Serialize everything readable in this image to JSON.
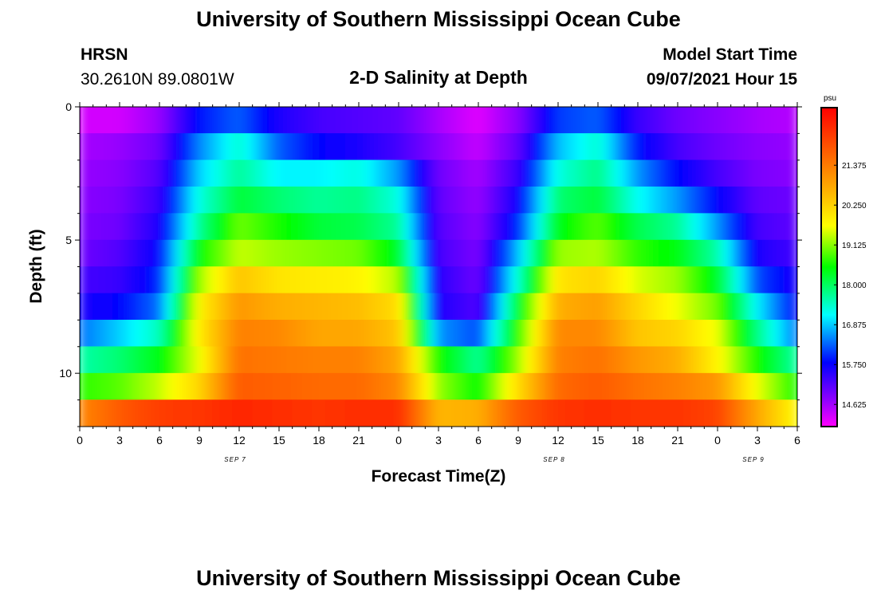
{
  "header": {
    "title": "University of Southern Mississippi Ocean Cube",
    "station": "HRSN",
    "coordinates": "30.2610N  89.0801W",
    "plot_title": "2-D Salinity at Depth",
    "model_start_label": "Model Start Time",
    "model_start_value": "09/07/2021 Hour 15"
  },
  "footer": {
    "title": "University of Southern Mississippi Ocean Cube"
  },
  "chart_data": {
    "type": "heatmap",
    "title": "2-D Salinity at Depth",
    "xlabel": "Forecast Time(Z)",
    "ylabel": "Depth (ft)",
    "x_hours_range": [
      0,
      54
    ],
    "x_ticks": [
      {
        "hour": 0,
        "label": "0"
      },
      {
        "hour": 3,
        "label": "3"
      },
      {
        "hour": 6,
        "label": "6"
      },
      {
        "hour": 9,
        "label": "9"
      },
      {
        "hour": 12,
        "label": "12"
      },
      {
        "hour": 15,
        "label": "15"
      },
      {
        "hour": 18,
        "label": "18"
      },
      {
        "hour": 21,
        "label": "21"
      },
      {
        "hour": 24,
        "label": "0"
      },
      {
        "hour": 27,
        "label": "3"
      },
      {
        "hour": 30,
        "label": "6"
      },
      {
        "hour": 33,
        "label": "9"
      },
      {
        "hour": 36,
        "label": "12"
      },
      {
        "hour": 39,
        "label": "15"
      },
      {
        "hour": 42,
        "label": "18"
      },
      {
        "hour": 45,
        "label": "21"
      },
      {
        "hour": 48,
        "label": "0"
      },
      {
        "hour": 51,
        "label": "3"
      },
      {
        "hour": 54,
        "label": "6"
      }
    ],
    "date_labels": [
      {
        "hour": 12,
        "label": "SEP 7"
      },
      {
        "hour": 36,
        "label": "SEP 8"
      },
      {
        "hour": 51,
        "label": "SEP 9"
      }
    ],
    "y_range_ft": [
      0,
      12
    ],
    "y_ticks": [
      {
        "value": 0,
        "label": "0"
      },
      {
        "value": 5,
        "label": "5"
      },
      {
        "value": 10,
        "label": "10"
      }
    ],
    "colorbar": {
      "unit": "psu",
      "min": 14.0,
      "max": 23.0,
      "labels": [
        "21.375",
        "20.250",
        "19.125",
        "18.000",
        "16.875",
        "15.750",
        "14.625"
      ],
      "label_values": [
        21.375,
        20.25,
        19.125,
        18.0,
        16.875,
        15.75,
        14.625
      ]
    },
    "depth_rows_ft": [
      0.5,
      1.5,
      2.5,
      3.5,
      4.5,
      5.5,
      6.5,
      7.5,
      8.5,
      9.5,
      10.5,
      11.5
    ],
    "time_samples_hours": [
      0,
      3,
      6,
      9,
      12,
      15,
      18,
      21,
      24,
      27,
      30,
      33,
      36,
      39,
      42,
      45,
      48,
      51,
      54
    ],
    "salinity_psu": [
      [
        14.3,
        14.3,
        14.7,
        15.9,
        16.3,
        15.6,
        15.3,
        15.2,
        15.1,
        14.6,
        14.2,
        14.8,
        16.1,
        16.3,
        15.4,
        15.0,
        14.8,
        14.6,
        14.5
      ],
      [
        14.6,
        14.7,
        15.0,
        16.5,
        17.4,
        16.3,
        15.8,
        15.6,
        15.3,
        14.8,
        14.4,
        15.1,
        16.8,
        17.4,
        15.9,
        15.3,
        15.0,
        14.8,
        14.7
      ],
      [
        14.7,
        14.8,
        15.2,
        16.9,
        17.7,
        17.1,
        17.1,
        17.3,
        16.6,
        15.0,
        14.6,
        15.4,
        17.3,
        17.8,
        16.6,
        15.8,
        15.3,
        14.9,
        14.8
      ],
      [
        14.8,
        14.9,
        15.4,
        17.3,
        18.2,
        17.9,
        17.7,
        17.8,
        17.3,
        15.1,
        14.7,
        15.7,
        17.9,
        18.2,
        17.2,
        16.6,
        15.8,
        15.1,
        15.0
      ],
      [
        14.9,
        15.0,
        15.6,
        17.7,
        19.0,
        18.6,
        18.2,
        18.1,
        17.7,
        15.2,
        14.8,
        16.0,
        18.4,
        18.9,
        18.1,
        17.7,
        16.6,
        15.3,
        15.1
      ],
      [
        15.0,
        15.2,
        15.8,
        18.5,
        19.4,
        19.2,
        19.1,
        19.0,
        18.3,
        15.3,
        14.9,
        16.8,
        19.2,
        19.3,
        18.7,
        18.4,
        17.6,
        15.6,
        15.3
      ],
      [
        15.3,
        15.4,
        16.0,
        19.2,
        20.4,
        20.0,
        19.9,
        19.8,
        19.3,
        15.5,
        15.0,
        17.4,
        20.0,
        20.2,
        19.5,
        19.2,
        18.3,
        16.2,
        15.6
      ],
      [
        15.6,
        15.8,
        16.4,
        19.8,
        21.0,
        20.7,
        20.6,
        20.5,
        20.1,
        15.6,
        15.2,
        18.3,
        20.7,
        20.9,
        20.2,
        19.6,
        19.0,
        17.1,
        15.8
      ],
      [
        16.4,
        16.9,
        17.5,
        19.9,
        21.3,
        21.2,
        20.8,
        20.8,
        20.4,
        16.6,
        16.2,
        18.7,
        21.2,
        21.2,
        20.4,
        20.2,
        19.6,
        17.8,
        16.4
      ],
      [
        17.6,
        17.9,
        18.4,
        19.6,
        21.5,
        21.4,
        21.3,
        21.3,
        20.8,
        18.6,
        17.7,
        19.2,
        21.3,
        21.5,
        21.0,
        20.7,
        19.8,
        18.6,
        17.6
      ],
      [
        18.7,
        18.9,
        19.4,
        20.2,
        21.8,
        21.7,
        21.6,
        21.6,
        21.2,
        19.2,
        18.5,
        20.1,
        21.6,
        21.8,
        21.5,
        21.3,
        21.0,
        19.6,
        18.6
      ],
      [
        21.2,
        21.8,
        22.2,
        22.3,
        22.5,
        22.4,
        22.3,
        22.4,
        22.4,
        20.6,
        20.7,
        21.8,
        22.3,
        22.4,
        22.3,
        22.3,
        22.1,
        20.8,
        19.7
      ]
    ]
  }
}
